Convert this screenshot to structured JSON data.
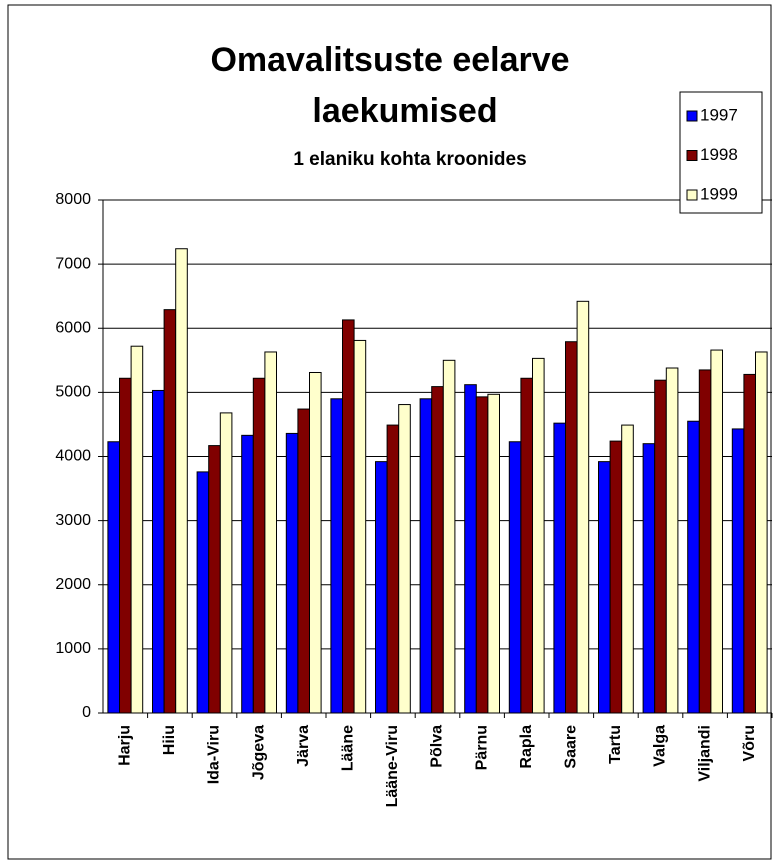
{
  "chart_data": {
    "type": "bar",
    "title": [
      "Omavalitsuste eelarve",
      "laekumised"
    ],
    "subtitle": "1 elaniku kohta kroonides",
    "categories": [
      "Harju",
      "Hiiu",
      "Ida-Viru",
      "Jõgeva",
      "Järva",
      "Lääne",
      "Lääne-Viru",
      "Põlva",
      "Pärnu",
      "Rapla",
      "Saare",
      "Tartu",
      "Valga",
      "Viljandi",
      "Võru"
    ],
    "series": [
      {
        "name": "1997",
        "color": "#0000ff",
        "values": [
          4230,
          5030,
          3760,
          4330,
          4360,
          4900,
          3920,
          4900,
          5120,
          4230,
          4520,
          3920,
          4200,
          4550,
          4430
        ]
      },
      {
        "name": "1998",
        "color": "#800000",
        "values": [
          5220,
          6290,
          4170,
          5220,
          4740,
          6130,
          4490,
          5090,
          4930,
          5220,
          5790,
          4240,
          5190,
          5350,
          5280
        ]
      },
      {
        "name": "1999",
        "color": "#ffffcc",
        "values": [
          5720,
          7240,
          4680,
          5630,
          5310,
          5810,
          4810,
          5500,
          4970,
          5530,
          6420,
          4490,
          5380,
          5660,
          5630
        ]
      }
    ],
    "ylim": [
      0,
      8000
    ],
    "yticks": [
      0,
      1000,
      2000,
      3000,
      4000,
      5000,
      6000,
      7000,
      8000
    ],
    "grid": true,
    "legend": "upper right"
  }
}
